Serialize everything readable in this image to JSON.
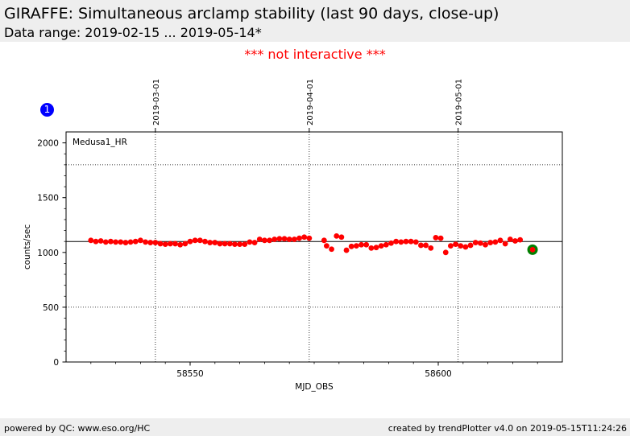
{
  "header": {
    "title": "GIRAFFE: Simultaneous arclamp stability (last 90 days, close-up)",
    "subtitle": "Data range: 2019-02-15 ... 2019-05-14*"
  },
  "notice": "*** not interactive ***",
  "badge": "1",
  "footer": {
    "left": "powered by QC: www.eso.org/HC",
    "right": "created by trendPlotter v4.0 on 2019-05-15T11:24:26"
  },
  "colors": {
    "points": "#ff0000",
    "latest": "#008000",
    "reference": "#000000",
    "notice": "#ff0000",
    "badge": "#0000ff"
  },
  "chart_data": {
    "type": "scatter",
    "panel_label": "Medusa1_HR",
    "xlabel": "MJD_OBS",
    "ylabel": "counts/sec",
    "xlim": [
      8525,
      8625
    ],
    "ylim": [
      0,
      2100
    ],
    "x_ticks": [
      8550,
      8600
    ],
    "x_tick_labels": [
      "58550",
      "58600"
    ],
    "y_ticks": [
      0,
      500,
      1000,
      1500,
      2000
    ],
    "y_tick_labels": [
      "0",
      "500",
      "1000",
      "1500",
      "2000"
    ],
    "reference_line": 1100,
    "dotted_hlines": [
      500,
      1800
    ],
    "date_markers": [
      {
        "x": 8543,
        "label": "2019-03-01"
      },
      {
        "x": 8574,
        "label": "2019-04-01"
      },
      {
        "x": 8604,
        "label": "2019-05-01"
      }
    ],
    "series": [
      {
        "x": [
          8530,
          8531,
          8532,
          8533,
          8534,
          8535,
          8536,
          8537,
          8538,
          8539,
          8540,
          8541,
          8542,
          8543,
          8544,
          8545,
          8546,
          8547,
          8548,
          8549,
          8550,
          8551,
          8552,
          8553,
          8554,
          8555,
          8556,
          8557,
          8558,
          8559,
          8560,
          8561,
          8562,
          8563,
          8564,
          8565,
          8566,
          8567,
          8568,
          8569,
          8570,
          8571,
          8572,
          8573,
          8574,
          8577,
          8577.5,
          8578.5,
          8579.5,
          8580.5,
          8581.5,
          8582.5,
          8583.5,
          8584.5,
          8585.5,
          8586.5,
          8587.5,
          8588.5,
          8589.5,
          8590.5,
          8591.5,
          8592.5,
          8593.5,
          8594.5,
          8595.5,
          8596.5,
          8597.5,
          8598.5,
          8599.5,
          8600.5,
          8601.5,
          8602.5,
          8603.5,
          8604.5,
          8605.5,
          8606.5,
          8607.5,
          8608.5,
          8609.5,
          8610.5,
          8611.5,
          8612.5,
          8613.5,
          8614.5,
          8615.5,
          8616.5
        ],
        "y": [
          1110,
          1100,
          1105,
          1095,
          1100,
          1095,
          1095,
          1090,
          1095,
          1100,
          1110,
          1095,
          1090,
          1090,
          1080,
          1075,
          1080,
          1080,
          1070,
          1080,
          1100,
          1110,
          1110,
          1100,
          1090,
          1090,
          1080,
          1080,
          1080,
          1075,
          1075,
          1075,
          1095,
          1090,
          1120,
          1110,
          1110,
          1120,
          1125,
          1125,
          1120,
          1120,
          1130,
          1140,
          1130,
          1110,
          1060,
          1030,
          1150,
          1140,
          1020,
          1055,
          1060,
          1070,
          1070,
          1040,
          1045,
          1060,
          1070,
          1085,
          1100,
          1095,
          1100,
          1100,
          1095,
          1065,
          1065,
          1040,
          1135,
          1130,
          1000,
          1060,
          1075,
          1060,
          1050,
          1065,
          1090,
          1085,
          1070,
          1090,
          1095,
          1110,
          1080,
          1120,
          1105,
          1115
        ]
      }
    ],
    "latest_point": {
      "x": 8619,
      "y": 1025
    }
  }
}
